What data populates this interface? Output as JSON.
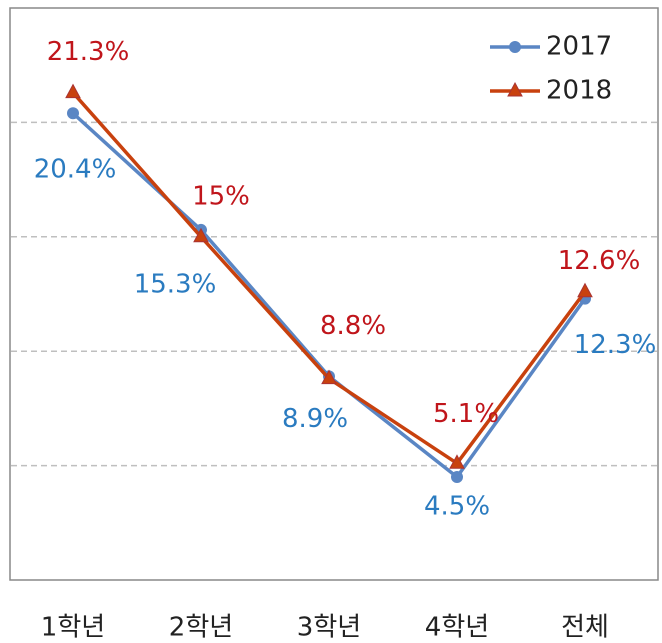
{
  "chart_data": {
    "type": "line",
    "categories": [
      "1학년",
      "2학년",
      "3학년",
      "4학년",
      "전체"
    ],
    "series": [
      {
        "name": "2017",
        "color": "#5a86c4",
        "label_color": "#2a7bc0",
        "marker": "circle",
        "values": [
          20.4,
          15.3,
          8.9,
          4.5,
          12.3
        ],
        "value_labels": [
          "20.4%",
          "15.3%",
          "8.9%",
          "4.5%",
          "12.3%"
        ]
      },
      {
        "name": "2018",
        "color": "#c8410e",
        "label_color": "#c0151b",
        "marker": "triangle",
        "values": [
          21.3,
          15,
          8.8,
          5.1,
          12.6
        ],
        "value_labels": [
          "21.3%",
          "15%",
          "8.8%",
          "5.1%",
          "12.6%"
        ]
      }
    ],
    "ylim": [
      0,
      25
    ],
    "yticks": [
      5,
      10,
      15,
      20
    ],
    "grid": true,
    "legend": "upper right"
  }
}
